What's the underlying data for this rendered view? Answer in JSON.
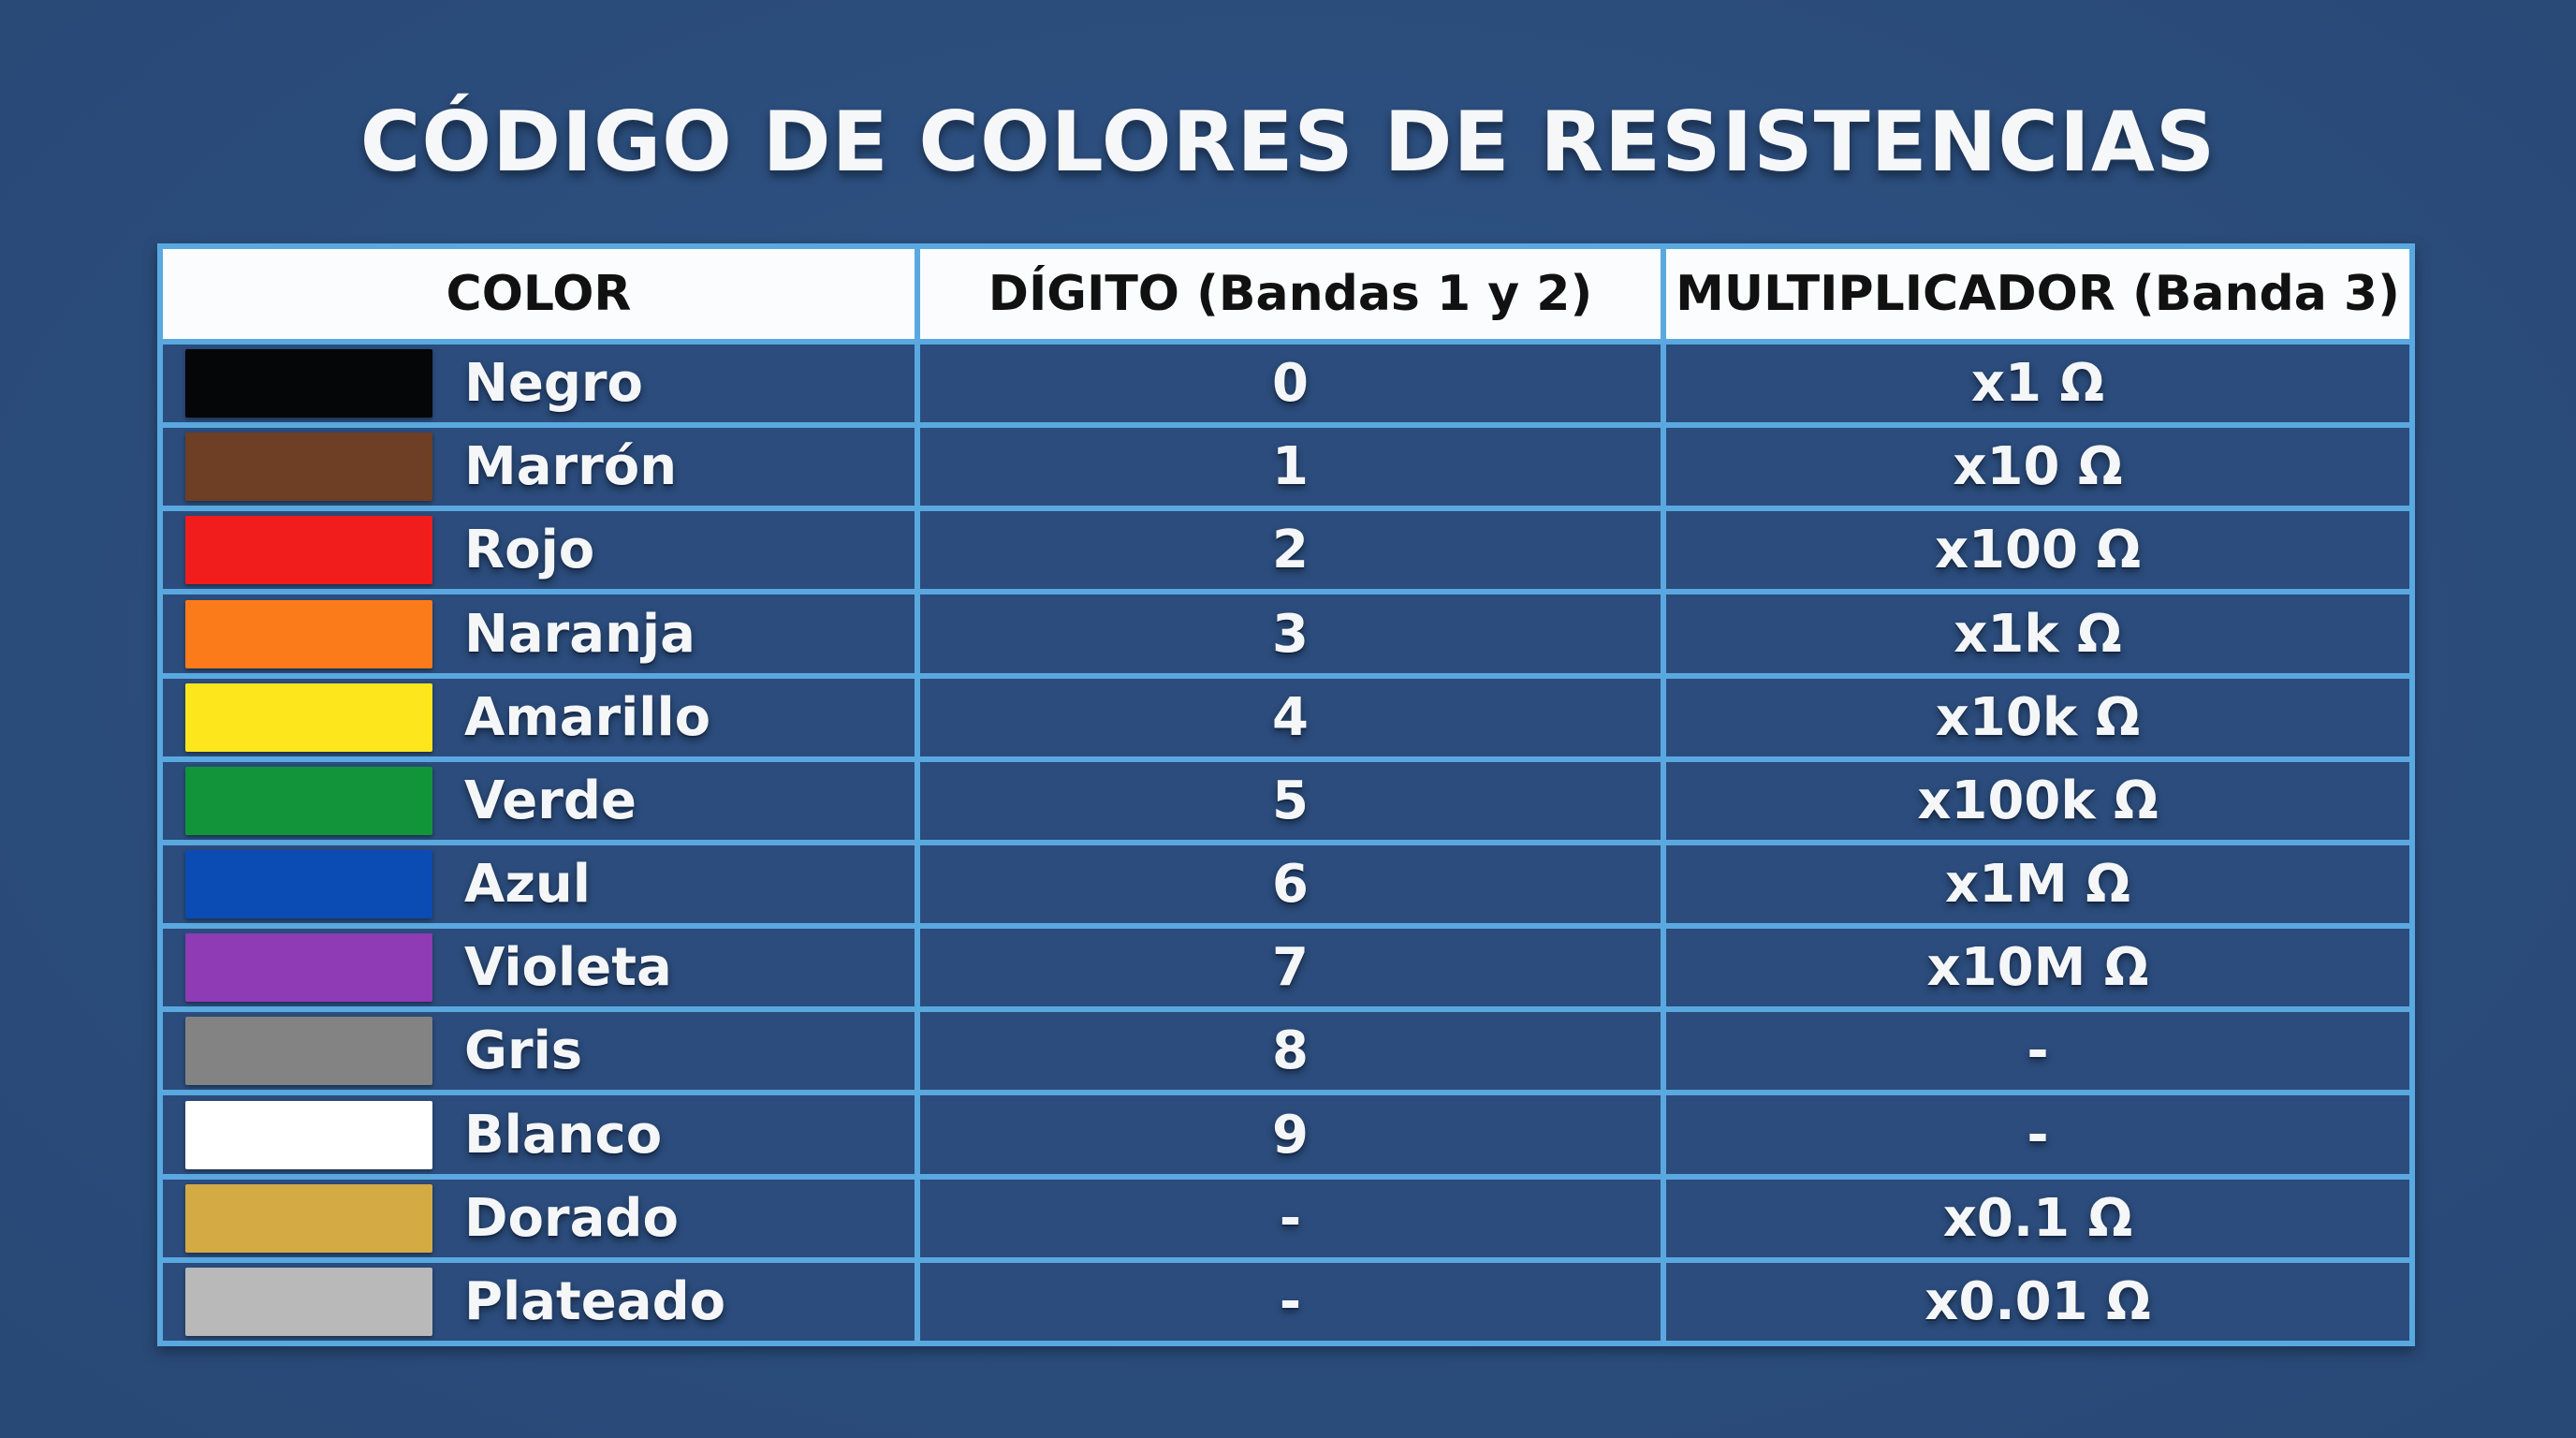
{
  "title": "CÓDIGO DE COLORES DE RESISTENCIAS",
  "table": {
    "headers": [
      "COLOR",
      "DÍGITO (Bandas 1 y 2)",
      "MULTIPLICADOR (Banda 3)"
    ],
    "rows": [
      {
        "color_name": "Negro",
        "swatch": "#050608",
        "digit": "0",
        "multiplier": "x1 Ω"
      },
      {
        "color_name": "Marrón",
        "swatch": "#6e3f24",
        "digit": "1",
        "multiplier": "x10 Ω"
      },
      {
        "color_name": "Rojo",
        "swatch": "#f11c1c",
        "digit": "2",
        "multiplier": "x100 Ω"
      },
      {
        "color_name": "Naranja",
        "swatch": "#fb7a1a",
        "digit": "3",
        "multiplier": "x1k Ω"
      },
      {
        "color_name": "Amarillo",
        "swatch": "#fde61c",
        "digit": "4",
        "multiplier": "x10k Ω"
      },
      {
        "color_name": "Verde",
        "swatch": "#12953a",
        "digit": "5",
        "multiplier": "x100k Ω"
      },
      {
        "color_name": "Azul",
        "swatch": "#0a4cb4",
        "digit": "6",
        "multiplier": "x1M Ω"
      },
      {
        "color_name": "Violeta",
        "swatch": "#8e3bb5",
        "digit": "7",
        "multiplier": "x10M Ω"
      },
      {
        "color_name": "Gris",
        "swatch": "#838383",
        "digit": "8",
        "multiplier": "-"
      },
      {
        "color_name": "Blanco",
        "swatch": "#ffffff",
        "digit": "9",
        "multiplier": "-"
      },
      {
        "color_name": "Dorado",
        "swatch": "#d4aa45",
        "digit": "-",
        "multiplier": "x0.1 Ω"
      },
      {
        "color_name": "Plateado",
        "swatch": "#b9b9b9",
        "digit": "-",
        "multiplier": "x0.01 Ω"
      }
    ]
  },
  "colors": {
    "background": "#2c4f7f",
    "grid_lines": "#5aa8e0",
    "header_bg": "#fbfcfd",
    "cell_bg": "#2b4c7c",
    "text": "#f4f6f8"
  }
}
